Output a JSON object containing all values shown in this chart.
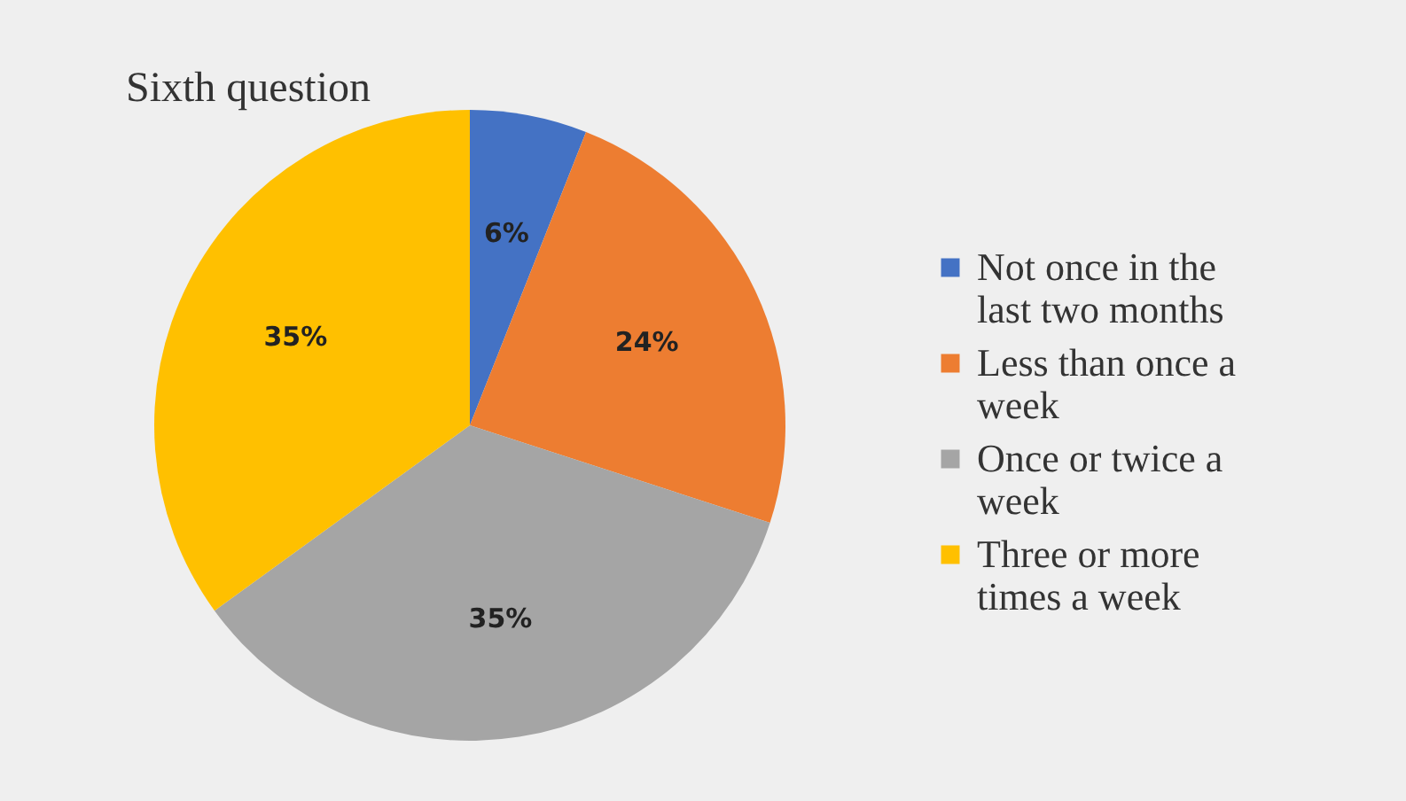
{
  "chart_data": {
    "type": "pie",
    "title": "Sixth question",
    "categories": [
      "Not once in the last two months",
      "Less than once a week",
      "Once or twice a week",
      "Three or more times a week"
    ],
    "values": [
      6,
      24,
      35,
      35
    ],
    "colors": [
      "#4472c4",
      "#ed7d31",
      "#a5a5a5",
      "#ffc000"
    ],
    "value_labels": [
      "6%",
      "24%",
      "35%",
      "35%"
    ],
    "legend": "right"
  }
}
